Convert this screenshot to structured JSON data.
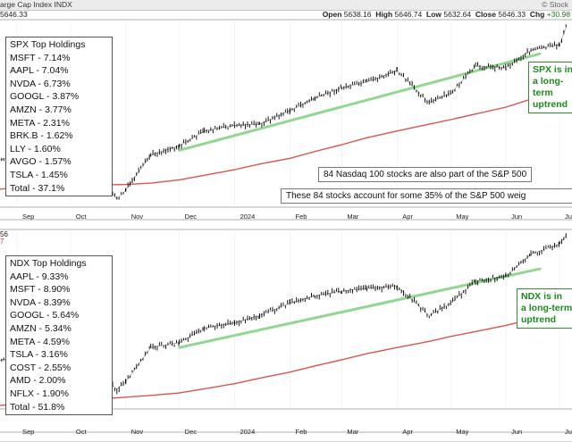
{
  "header": {
    "title": "arge Cap Index INDX",
    "brand": "© Stock",
    "last_value": "5646.33",
    "open_label": "Open",
    "open": "5638.16",
    "high_label": "High",
    "high": "5646.74",
    "low_label": "Low",
    "low": "5632.64",
    "close_label": "Close",
    "close": "5646.33",
    "chg_label": "Chg",
    "chg": "+30.98"
  },
  "top_panel": {
    "box_title": "SPX Top Holdings",
    "holdings": [
      "MSFT - 7.14%",
      "AAPL - 7.04%",
      "NVDA - 6.73%",
      "GOOGL - 3.87%",
      "AMZN - 3.77%",
      "META - 2.31%",
      "BRK.B - 1.62%",
      "LLY - 1.60%",
      "AVGO - 1.57%",
      "TSLA - 1.45%",
      "Total - 37.1%"
    ],
    "note1": "84 Nasdaq 100 stocks are also part of the S&P 500",
    "note2": "These 84 stocks account for some 35% of the S&P 500 weig",
    "callout": [
      "SPX is in",
      "a long-term",
      "uptrend"
    ]
  },
  "bottom_panel": {
    "left_labels": [
      "56",
      "7"
    ],
    "box_title": "NDX Top Holdings",
    "holdings": [
      "AAPL - 9.33%",
      "MSFT - 8.90%",
      "NVDA - 8.39%",
      "GOOGL - 5.64%",
      "AMZN - 5.34%",
      "META - 4.59%",
      "TSLA - 3.16%",
      "COST - 2.55%",
      "AMD - 2.00%",
      "NFLX - 1.90%",
      "Total - 51.8%"
    ],
    "callout": [
      "NDX is in",
      "a long-term",
      "uptrend"
    ]
  },
  "colors": {
    "price": "#000000",
    "moving_average": "#d9534f",
    "trendline": "#90d890",
    "callout_text": "#1c8a1c"
  },
  "chart_data": [
    {
      "type": "line",
      "title": "",
      "x_tick_labels": [
        "Sep",
        "Oct",
        "Nov",
        "Dec",
        "2024",
        "Feb",
        "Mar",
        "Apr",
        "May",
        "Jun",
        "Jul"
      ],
      "x": [
        "2023-08-15",
        "2023-09-01",
        "2023-09-15",
        "2023-10-01",
        "2023-10-15",
        "2023-10-27",
        "2023-11-01",
        "2023-11-15",
        "2023-12-01",
        "2023-12-15",
        "2024-01-01",
        "2024-01-15",
        "2024-02-01",
        "2024-02-15",
        "2024-03-01",
        "2024-03-15",
        "2024-04-01",
        "2024-04-19",
        "2024-05-01",
        "2024-05-15",
        "2024-06-01",
        "2024-06-15",
        "2024-07-01",
        "2024-07-05"
      ],
      "series": [
        {
          "values": [
            4430,
            4510,
            4480,
            4340,
            4330,
            4120,
            4200,
            4510,
            4590,
            4720,
            4770,
            4780,
            4900,
            5010,
            5100,
            5150,
            5250,
            4970,
            5050,
            5290,
            5280,
            5430,
            5480,
            5646
          ]
        },
        {
          "values": [
            4200,
            4220,
            4235,
            4240,
            4245,
            4248,
            4250,
            4262,
            4290,
            4330,
            4380,
            4430,
            4480,
            4540,
            4600,
            4660,
            4720,
            4780,
            4820,
            4870,
            4930,
            5000,
            5060,
            5080
          ]
        }
      ],
      "trendline": {
        "x": [
          "2023-12-01",
          "2024-06-20"
        ],
        "y": [
          4550,
          5400
        ]
      }
    },
    {
      "type": "line",
      "title": "",
      "x_tick_labels": [
        "Sep",
        "Oct",
        "Nov",
        "Dec",
        "2024",
        "Feb",
        "Mar",
        "Apr",
        "May",
        "Jun",
        "Jul"
      ],
      "x": [
        "2023-08-15",
        "2023-09-01",
        "2023-09-15",
        "2023-10-01",
        "2023-10-15",
        "2023-10-27",
        "2023-11-01",
        "2023-11-15",
        "2023-12-01",
        "2023-12-15",
        "2024-01-01",
        "2024-01-15",
        "2024-02-01",
        "2024-02-15",
        "2024-03-01",
        "2024-03-15",
        "2024-04-01",
        "2024-04-19",
        "2024-05-01",
        "2024-05-15",
        "2024-06-01",
        "2024-06-15",
        "2024-07-01",
        "2024-07-05"
      ],
      "series": [
        {
          "values": [
            15200,
            15400,
            15300,
            14900,
            14850,
            14100,
            14400,
            15800,
            16000,
            16600,
            16800,
            17100,
            17600,
            17900,
            18100,
            18200,
            18300,
            17100,
            17600,
            18500,
            18700,
            19600,
            20000,
            20400
          ]
        },
        {
          "values": [
            13400,
            13500,
            13600,
            13680,
            13720,
            13750,
            13780,
            13850,
            13950,
            14120,
            14330,
            14550,
            14800,
            15050,
            15300,
            15550,
            15800,
            16050,
            16250,
            16450,
            16700,
            16950,
            17200,
            17300
          ]
        }
      ],
      "trendline": {
        "x": [
          "2023-12-01",
          "2024-06-20"
        ],
        "y": [
          15800,
          19000
        ]
      }
    }
  ]
}
